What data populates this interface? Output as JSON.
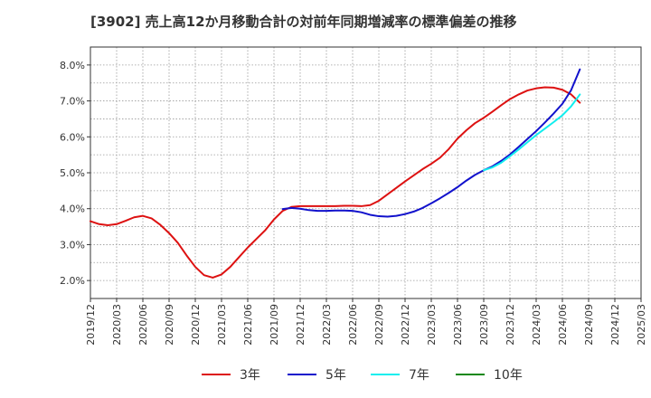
{
  "chart_data": {
    "type": "line",
    "title": "[3902]  売上高12か月移動合計の対前年同期増減率の標準偏差の推移",
    "xlabel": "",
    "ylabel": "",
    "ylim": [
      1.5,
      8.5
    ],
    "yticks": [
      2.0,
      3.0,
      4.0,
      5.0,
      6.0,
      7.0,
      8.0
    ],
    "ytick_labels": [
      "2.0%",
      "3.0%",
      "4.0%",
      "5.0%",
      "6.0%",
      "7.0%",
      "8.0%"
    ],
    "xtick_labels": [
      "2019/12",
      "2020/03",
      "2020/06",
      "2020/09",
      "2020/12",
      "2021/03",
      "2021/06",
      "2021/09",
      "2021/12",
      "2022/03",
      "2022/06",
      "2022/09",
      "2022/12",
      "2023/03",
      "2023/06",
      "2023/09",
      "2023/12",
      "2024/03",
      "2024/06",
      "2024/09",
      "2024/12",
      "2025/03"
    ],
    "grid": true,
    "legend_position": "bottom",
    "series": [
      {
        "name": "3年",
        "color": "#dd1111",
        "points": [
          [
            0,
            3.65
          ],
          [
            1,
            3.57
          ],
          [
            2,
            3.54
          ],
          [
            3,
            3.57
          ],
          [
            4,
            3.66
          ],
          [
            5,
            3.76
          ],
          [
            6,
            3.8
          ],
          [
            7,
            3.73
          ],
          [
            8,
            3.55
          ],
          [
            9,
            3.32
          ],
          [
            10,
            3.05
          ],
          [
            11,
            2.7
          ],
          [
            12,
            2.38
          ],
          [
            13,
            2.15
          ],
          [
            14,
            2.08
          ],
          [
            15,
            2.17
          ],
          [
            16,
            2.38
          ],
          [
            17,
            2.65
          ],
          [
            18,
            2.92
          ],
          [
            19,
            3.16
          ],
          [
            20,
            3.4
          ],
          [
            21,
            3.7
          ],
          [
            22,
            3.94
          ],
          [
            23,
            4.05
          ],
          [
            24,
            4.07
          ],
          [
            25,
            4.07
          ],
          [
            26,
            4.07
          ],
          [
            27,
            4.07
          ],
          [
            28,
            4.07
          ],
          [
            29,
            4.08
          ],
          [
            30,
            4.08
          ],
          [
            31,
            4.07
          ],
          [
            32,
            4.1
          ],
          [
            33,
            4.22
          ],
          [
            34,
            4.4
          ],
          [
            35,
            4.58
          ],
          [
            36,
            4.76
          ],
          [
            37,
            4.93
          ],
          [
            38,
            5.1
          ],
          [
            39,
            5.25
          ],
          [
            40,
            5.42
          ],
          [
            41,
            5.66
          ],
          [
            42,
            5.95
          ],
          [
            43,
            6.18
          ],
          [
            44,
            6.38
          ],
          [
            45,
            6.53
          ],
          [
            46,
            6.7
          ],
          [
            47,
            6.88
          ],
          [
            48,
            7.05
          ],
          [
            49,
            7.18
          ],
          [
            50,
            7.29
          ],
          [
            51,
            7.35
          ],
          [
            52,
            7.38
          ],
          [
            53,
            7.37
          ],
          [
            54,
            7.31
          ],
          [
            55,
            7.18
          ],
          [
            56,
            6.95
          ]
        ]
      },
      {
        "name": "5年",
        "color": "#1111cc",
        "points": [
          [
            22,
            3.99
          ],
          [
            23,
            4.02
          ],
          [
            24,
            4.0
          ],
          [
            25,
            3.96
          ],
          [
            26,
            3.94
          ],
          [
            27,
            3.94
          ],
          [
            28,
            3.95
          ],
          [
            29,
            3.95
          ],
          [
            30,
            3.94
          ],
          [
            31,
            3.9
          ],
          [
            32,
            3.83
          ],
          [
            33,
            3.79
          ],
          [
            34,
            3.78
          ],
          [
            35,
            3.8
          ],
          [
            36,
            3.85
          ],
          [
            37,
            3.92
          ],
          [
            38,
            4.02
          ],
          [
            39,
            4.15
          ],
          [
            40,
            4.29
          ],
          [
            41,
            4.44
          ],
          [
            42,
            4.6
          ],
          [
            43,
            4.78
          ],
          [
            44,
            4.94
          ],
          [
            45,
            5.07
          ],
          [
            46,
            5.18
          ],
          [
            47,
            5.33
          ],
          [
            48,
            5.51
          ],
          [
            49,
            5.72
          ],
          [
            50,
            5.94
          ],
          [
            51,
            6.16
          ],
          [
            52,
            6.4
          ],
          [
            53,
            6.65
          ],
          [
            54,
            6.92
          ],
          [
            55,
            7.3
          ],
          [
            56,
            7.88
          ]
        ]
      },
      {
        "name": "7年",
        "color": "#11eeee",
        "points": [
          [
            45,
            5.07
          ],
          [
            46,
            5.15
          ],
          [
            47,
            5.28
          ],
          [
            48,
            5.46
          ],
          [
            49,
            5.65
          ],
          [
            50,
            5.85
          ],
          [
            51,
            6.05
          ],
          [
            52,
            6.23
          ],
          [
            53,
            6.41
          ],
          [
            54,
            6.6
          ],
          [
            55,
            6.85
          ],
          [
            56,
            7.18
          ]
        ]
      },
      {
        "name": "10年",
        "color": "#118811",
        "points": []
      }
    ]
  }
}
